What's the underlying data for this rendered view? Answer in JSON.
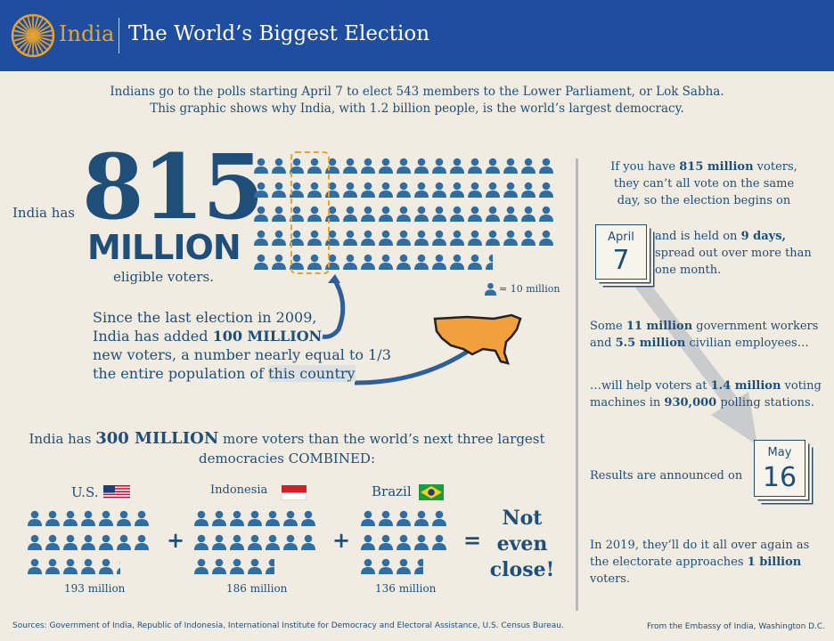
{
  "header": {
    "brand": "India",
    "title": "The World’s Biggest Election"
  },
  "intro": {
    "line1": "Indians go to the polls starting April 7 to elect 543 members to the Lower Parliament, or Lok Sabha.",
    "line2": "This graphic shows why India, with 1.2 billion people, is the world’s largest democracy."
  },
  "voters": {
    "prefix": "India has",
    "number": "815",
    "unit": "MILLION",
    "suffix": "eligible voters.",
    "legend": "= 10 million",
    "voters_count": 81.5
  },
  "added": {
    "line1": "Since the last election in 2009,",
    "line2a": "India has added ",
    "line2b": "100 MILLION",
    "line3": "new voters, a number nearly equal to ",
    "line3b": "1/3",
    "line4a": "the entire population of ",
    "line4b": "this country"
  },
  "compare": {
    "line1a": "India has ",
    "line1b": "300 MILLION",
    "line1c": " more voters than the world’s next three largest",
    "line2": "democracies COMBINED:",
    "plus": "+",
    "equals": "=",
    "result": [
      "Not",
      "even",
      "close!"
    ],
    "countries": [
      {
        "name": "U.S.",
        "value": "193 million",
        "count": 19.3
      },
      {
        "name": "Indonesia",
        "value": "186 million",
        "count": 18.6
      },
      {
        "name": "Brazil",
        "value": "136 million",
        "count": 13.6
      }
    ]
  },
  "right": {
    "p1": [
      "If you have ",
      "815 million",
      " voters,",
      "they can’t all vote on the same",
      "day, so the election begins on"
    ],
    "start": {
      "month": "April",
      "day": "7"
    },
    "p2a": "and is held on ",
    "p2b": "9 days,",
    "p2c": "spread out over more than",
    "p2d": "one month.",
    "p3": [
      "Some ",
      "11 million",
      " government workers",
      "and ",
      "5.5 million",
      " civilian employees…"
    ],
    "p4": [
      "…will help voters at ",
      "1.4 million",
      " voting",
      "machines in ",
      "930,000",
      " polling stations."
    ],
    "results": "Results are announced on",
    "end": {
      "month": "May",
      "day": "16"
    },
    "p5": [
      "In 2019, they’ll do it all over again as",
      "the electorate approaches ",
      "1 billion",
      "voters."
    ]
  },
  "footer": {
    "sources": "Sources: Government of India, Republic of Indonesia, International Institute for Democracy and Electoral Assistance, U.S. Census Bureau.",
    "credit": "From the Embassy of India, Washington D.C."
  },
  "colors": {
    "header": "#1f4ea0",
    "navy": "#1f4e79",
    "person": "#2f6da3",
    "accent": "#e8a22e",
    "map": "#f2a03d",
    "rule": "#b9b9b9",
    "bg": "#f0ece2"
  }
}
